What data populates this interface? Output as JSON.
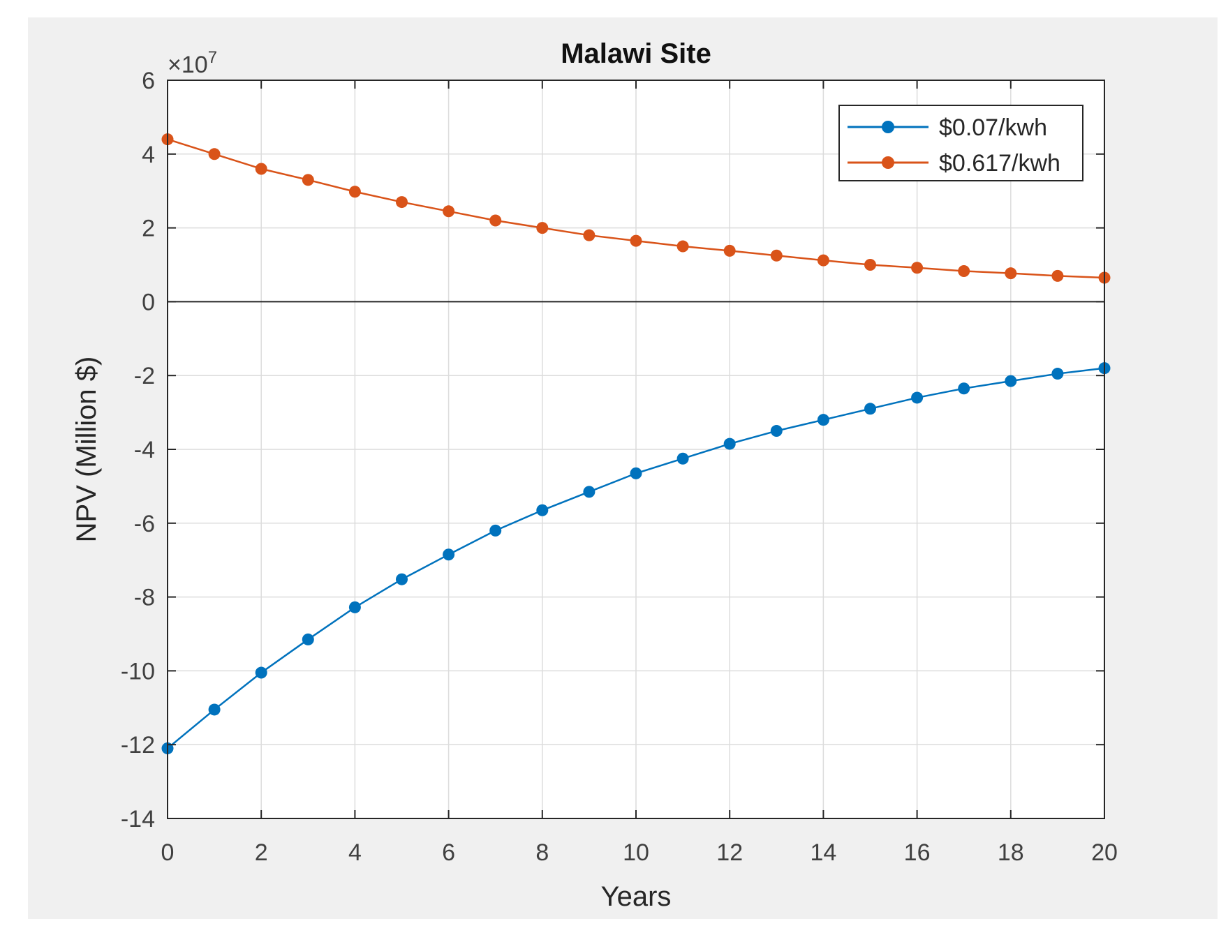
{
  "chart_data": {
    "type": "line",
    "title": "Malawi Site",
    "xlabel": "Years",
    "ylabel": "NPV (Million $)",
    "exponent_label": "×10",
    "exponent_power": "7",
    "xlim": [
      0,
      20
    ],
    "ylim": [
      -14,
      6
    ],
    "xticks": [
      0,
      2,
      4,
      6,
      8,
      10,
      12,
      14,
      16,
      18,
      20
    ],
    "yticks": [
      -14,
      -12,
      -10,
      -8,
      -6,
      -4,
      -2,
      0,
      2,
      4,
      6
    ],
    "grid": true,
    "legend_position": "top-right",
    "x": [
      0,
      1,
      2,
      3,
      4,
      5,
      6,
      7,
      8,
      9,
      10,
      11,
      12,
      13,
      14,
      15,
      16,
      17,
      18,
      19,
      20
    ],
    "series": [
      {
        "name": "$0.07/kwh",
        "color": "#0072BD",
        "values": [
          -12.1,
          -11.05,
          -10.05,
          -9.15,
          -8.28,
          -7.52,
          -6.85,
          -6.2,
          -5.65,
          -5.15,
          -4.65,
          -4.25,
          -3.85,
          -3.5,
          -3.2,
          -2.9,
          -2.6,
          -2.35,
          -2.15,
          -1.95,
          -1.8
        ]
      },
      {
        "name": "$0.617/kwh",
        "color": "#D95319",
        "values": [
          4.4,
          4.0,
          3.6,
          3.3,
          2.98,
          2.7,
          2.45,
          2.2,
          2.0,
          1.8,
          1.65,
          1.5,
          1.38,
          1.25,
          1.12,
          1.0,
          0.92,
          0.83,
          0.77,
          0.7,
          0.65
        ]
      }
    ]
  }
}
